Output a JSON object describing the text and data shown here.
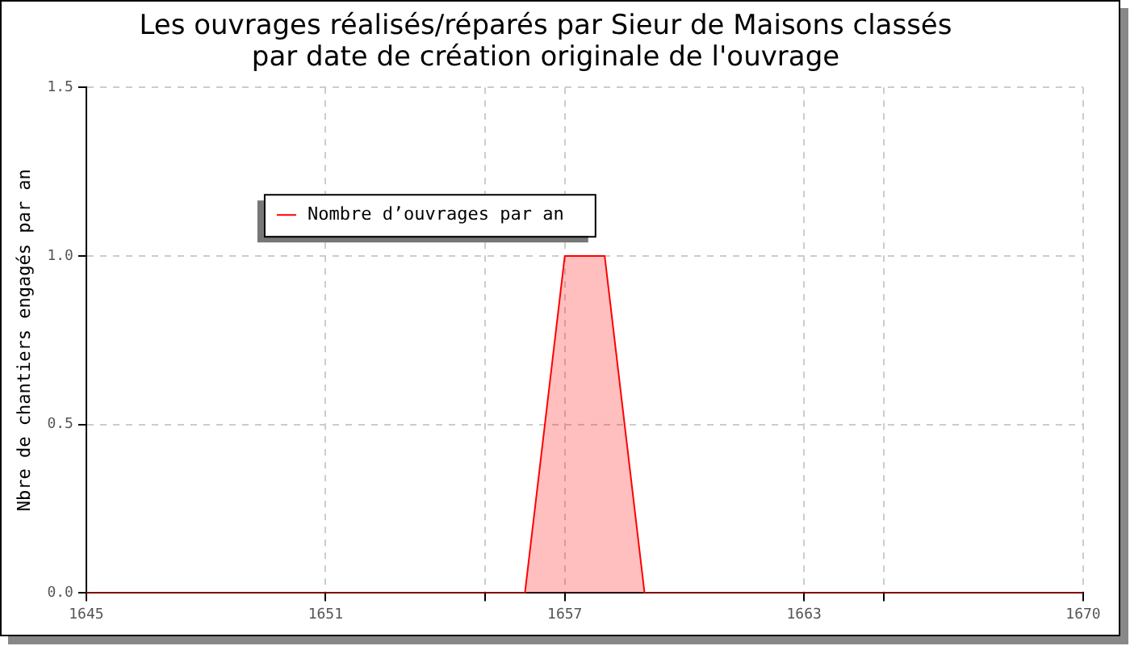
{
  "chart_data": {
    "type": "area",
    "title": "Les ouvrages réalisés/réparés par Sieur de Maisons classés\npar date de création originale de l'ouvrage",
    "ylabel": "Nbre de chantiers engagés par an",
    "x": [
      1645,
      1656,
      1657,
      1658,
      1659,
      1670
    ],
    "series": [
      {
        "name": "Nombre d’ouvrages par an",
        "color": "#ff0000",
        "values": [
          0,
          0,
          1,
          1,
          0,
          0
        ]
      }
    ],
    "xlim": [
      1645,
      1670
    ],
    "xticks": [
      1645,
      1651,
      {
        "value": 1655,
        "label": null
      },
      1657,
      1663,
      {
        "value": 1665,
        "label": null
      },
      1670
    ],
    "ylim": [
      0,
      1.5
    ],
    "yticks": [
      {
        "value": 0,
        "label": "0.0"
      },
      {
        "value": 0.5,
        "label": "0.5"
      },
      {
        "value": 1,
        "label": "1.0"
      },
      {
        "value": 1.5,
        "label": "1.5"
      }
    ],
    "grid": true,
    "legend": "top left",
    "marker": "none",
    "line_style": "solid"
  }
}
